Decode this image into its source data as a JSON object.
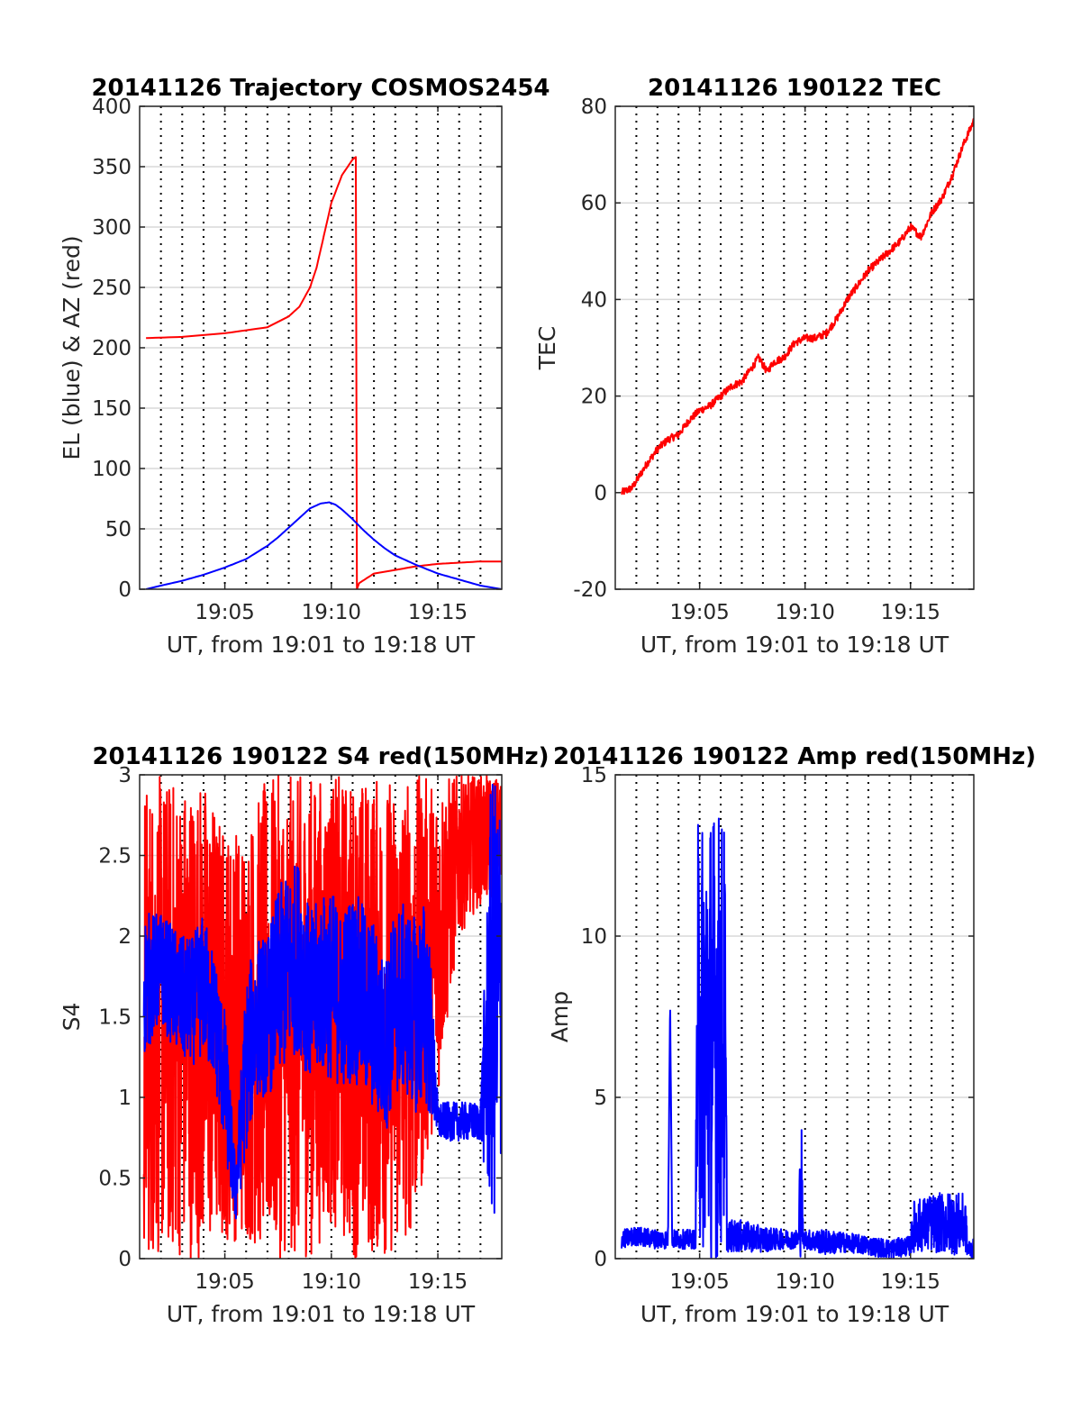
{
  "colors": {
    "azimuth": "#ff0000",
    "elevation": "#0000ff",
    "tec": "#ff0000",
    "s4_red": "#ff0000",
    "s4_blue": "#0000ff",
    "amp_blue": "#0000ff",
    "amp_red": "#ff0000",
    "grid": "#d9d9d9",
    "minute_lines": "#000000"
  },
  "chart_data": [
    {
      "type": "line",
      "title": "20141126 Trajectory COSMOS2454",
      "xlabel": "UT, from 19:01 to 19:18 UT",
      "ylabel": "EL (blue) & AZ (red)",
      "xlim": [
        1.0,
        18.0
      ],
      "ylim": [
        0,
        400
      ],
      "x_ticks": [
        5,
        10,
        15
      ],
      "x_tick_labels": [
        "19:05",
        "19:10",
        "19:15"
      ],
      "y_ticks": [
        0,
        50,
        100,
        150,
        200,
        250,
        300,
        350,
        400
      ],
      "y_tick_labels": [
        "0",
        "50",
        "100",
        "150",
        "200",
        "250",
        "300",
        "350",
        "400"
      ],
      "minute_lines": [
        2,
        3,
        4,
        5,
        6,
        7,
        8,
        9,
        10,
        11,
        12,
        13,
        14,
        15,
        16,
        17
      ],
      "grid": true,
      "series": [
        {
          "color": "red",
          "kind": "line",
          "x": [
            1.3,
            3,
            5,
            7,
            8,
            8.5,
            9,
            9.3,
            9.6,
            10,
            10.5,
            11.0,
            11.15,
            11.2,
            11.3,
            12,
            13,
            14,
            15,
            16,
            17,
            18
          ],
          "y": [
            208,
            209,
            212,
            217,
            226,
            234,
            250,
            266,
            289,
            320,
            343,
            356,
            358,
            0,
            5,
            13,
            16,
            19,
            21,
            22,
            23,
            23
          ]
        },
        {
          "color": "blue",
          "kind": "line",
          "x": [
            1.3,
            2,
            3,
            4,
            5,
            6,
            7,
            7.5,
            8,
            8.5,
            9,
            9.5,
            9.9,
            10.2,
            10.5,
            11,
            11.5,
            12,
            12.5,
            13,
            14,
            15,
            16,
            17,
            18
          ],
          "y": [
            0,
            3,
            7,
            12,
            18,
            25,
            36,
            43,
            51,
            59,
            67,
            71,
            72,
            70,
            66,
            58,
            49,
            41,
            34,
            28,
            20,
            13,
            8,
            3,
            0
          ]
        }
      ]
    },
    {
      "type": "line",
      "title": "20141126 190122 TEC",
      "xlabel": "UT, from 19:01 to 19:18 UT",
      "ylabel": "TEC",
      "xlim": [
        1.0,
        18.0
      ],
      "ylim": [
        -20,
        80
      ],
      "x_ticks": [
        5,
        10,
        15
      ],
      "x_tick_labels": [
        "19:05",
        "19:10",
        "19:15"
      ],
      "y_ticks": [
        -20,
        0,
        20,
        40,
        60,
        80
      ],
      "y_tick_labels": [
        "-20",
        "0",
        "20",
        "40",
        "60",
        "80"
      ],
      "minute_lines": [
        2,
        3,
        4,
        5,
        6,
        7,
        8,
        9,
        10,
        11,
        12,
        13,
        14,
        15,
        16,
        17
      ],
      "grid": true,
      "series": [
        {
          "color": "red",
          "kind": "line",
          "x": [
            1.3,
            1.8,
            2.5,
            3,
            3.5,
            4,
            4.5,
            5,
            5.5,
            6,
            6.5,
            7,
            7.5,
            7.8,
            8.2,
            8.5,
            9,
            9.5,
            10,
            10.5,
            11,
            11.5,
            12,
            12.5,
            13,
            13.5,
            14,
            14.5,
            15,
            15.5,
            16,
            16.5,
            17,
            17.5,
            18
          ],
          "y": [
            0,
            1,
            6,
            9,
            11,
            12,
            15,
            17,
            18,
            20,
            22,
            23,
            26,
            28,
            25,
            27,
            28,
            31,
            32,
            32,
            33,
            36,
            40,
            43,
            46,
            48,
            50,
            52,
            55,
            53,
            58,
            61,
            66,
            72,
            77
          ]
        }
      ]
    },
    {
      "type": "line",
      "title": "20141126 190122 S4 red(150MHz)",
      "xlabel": "UT, from 19:01 to 19:18 UT",
      "ylabel": "S4",
      "xlim": [
        1.0,
        18.0
      ],
      "ylim": [
        0,
        3
      ],
      "x_ticks": [
        5,
        10,
        15
      ],
      "x_tick_labels": [
        "19:05",
        "19:10",
        "19:15"
      ],
      "y_ticks": [
        0,
        0.5,
        1,
        1.5,
        2,
        2.5,
        3
      ],
      "y_tick_labels": [
        "0",
        "0.5",
        "1",
        "1.5",
        "2",
        "2.5",
        "3"
      ],
      "minute_lines": [
        2,
        3,
        4,
        5,
        6,
        7,
        8,
        9,
        10,
        11,
        12,
        13,
        14,
        15,
        16,
        17
      ],
      "grid": true,
      "series": [
        {
          "color": "red",
          "kind": "noisy-line",
          "x": [
            1.2,
            2,
            3,
            4,
            5,
            6,
            7,
            8,
            9,
            10,
            11,
            12,
            13,
            14,
            15,
            16,
            17,
            18
          ],
          "y": [
            1.5,
            1.5,
            1.5,
            1.5,
            1.4,
            1.4,
            1.5,
            1.5,
            1.5,
            1.6,
            1.5,
            1.5,
            1.5,
            1.6,
            2.0,
            2.5,
            2.6,
            2.6
          ],
          "noise": [
            1.5,
            1.5,
            1.5,
            1.5,
            1.3,
            1.3,
            1.5,
            1.5,
            1.5,
            1.4,
            1.5,
            1.5,
            1.5,
            1.4,
            1.0,
            0.5,
            0.4,
            0.4
          ]
        },
        {
          "color": "blue",
          "kind": "noisy-line",
          "x": [
            1.2,
            2,
            3,
            3.5,
            4,
            4.5,
            5,
            5.5,
            6,
            6.5,
            7,
            7.5,
            8,
            8.5,
            9,
            9.5,
            10,
            10.5,
            11,
            11.5,
            12,
            12.5,
            13,
            13.5,
            14,
            14.5,
            15,
            15.5,
            16,
            16.5,
            17,
            17.5,
            18
          ],
          "y": [
            1.7,
            1.8,
            1.6,
            1.6,
            1.7,
            1.5,
            1.1,
            0.4,
            1.2,
            1.5,
            1.5,
            1.7,
            1.8,
            1.9,
            1.6,
            1.7,
            1.7,
            1.6,
            1.7,
            1.6,
            1.5,
            1.3,
            1.6,
            1.6,
            1.5,
            1.6,
            0.85,
            0.85,
            0.85,
            0.85,
            0.85,
            1.6,
            1.6
          ],
          "noise": [
            0.45,
            0.35,
            0.4,
            0.4,
            0.45,
            0.4,
            0.45,
            0.2,
            0.55,
            0.5,
            0.5,
            0.6,
            0.6,
            0.6,
            0.55,
            0.55,
            0.6,
            0.55,
            0.6,
            0.6,
            0.6,
            0.55,
            0.6,
            0.6,
            0.6,
            0.7,
            0.12,
            0.12,
            0.12,
            0.12,
            0.12,
            1.4,
            1.4
          ]
        }
      ]
    },
    {
      "type": "line",
      "title": "20141126 190122 Amp red(150MHz)",
      "xlabel": "UT, from 19:01 to 19:18 UT",
      "ylabel": "Amp",
      "xlim": [
        1.0,
        18.0
      ],
      "ylim": [
        0,
        15
      ],
      "x_ticks": [
        5,
        10,
        15
      ],
      "x_tick_labels": [
        "19:05",
        "19:10",
        "19:15"
      ],
      "y_ticks": [
        0,
        5,
        10,
        15
      ],
      "y_tick_labels": [
        "0",
        "5",
        "10",
        "15"
      ],
      "minute_lines": [
        2,
        3,
        4,
        5,
        6,
        7,
        8,
        9,
        10,
        11,
        12,
        13,
        14,
        15,
        16,
        17
      ],
      "grid": true,
      "series": [
        {
          "color": "blue",
          "kind": "noisy-line",
          "x": [
            1.3,
            2,
            3,
            3.5,
            3.6,
            3.7,
            4,
            4.8,
            4.9,
            5,
            5.5,
            6,
            6.2,
            6.3,
            7,
            8,
            9,
            9.7,
            9.8,
            9.9,
            10,
            11,
            12,
            13,
            14,
            15,
            15.1,
            16,
            17,
            17.6,
            17.7,
            18
          ],
          "y": [
            0.6,
            0.7,
            0.6,
            0.6,
            8.0,
            0.6,
            0.6,
            0.6,
            7.0,
            7.0,
            7.0,
            7.0,
            7.0,
            0.7,
            0.7,
            0.6,
            0.6,
            0.6,
            3.0,
            0.6,
            0.6,
            0.5,
            0.5,
            0.4,
            0.3,
            0.4,
            1.0,
            1.1,
            1.1,
            1.1,
            0.3,
            0.3
          ],
          "noise": [
            0.3,
            0.3,
            0.3,
            0.3,
            0.0,
            0.3,
            0.3,
            0.3,
            6.5,
            6.8,
            7.2,
            7.0,
            6.5,
            0.5,
            0.5,
            0.4,
            0.3,
            0.3,
            3.0,
            0.3,
            0.3,
            0.4,
            0.3,
            0.3,
            0.3,
            0.3,
            0.8,
            0.9,
            1.0,
            0.9,
            0.3,
            0.3
          ]
        }
      ]
    }
  ]
}
